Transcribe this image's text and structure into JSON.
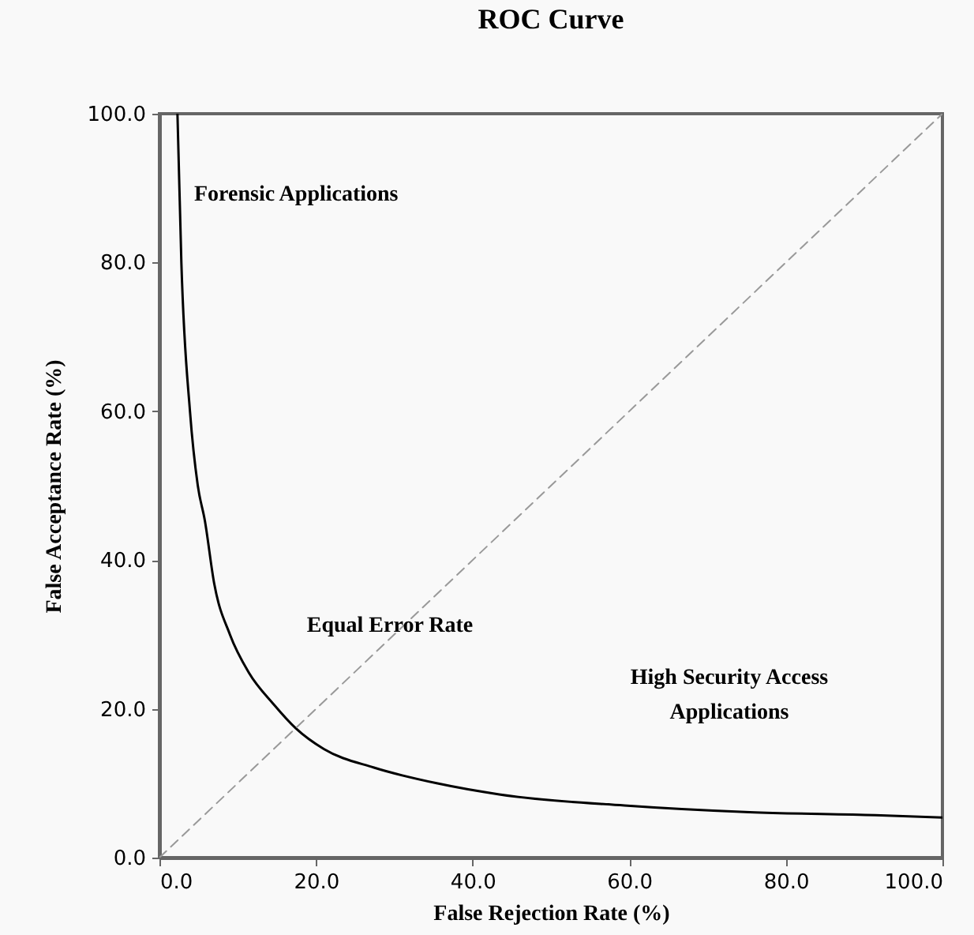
{
  "chart_data": {
    "type": "line",
    "title": "ROC Curve",
    "xlabel": "False Rejection Rate (%)",
    "ylabel": "False Acceptance Rate (%)",
    "xlim": [
      0,
      100
    ],
    "ylim": [
      0,
      100
    ],
    "xticks": [
      {
        "value": 0,
        "label": "0.0"
      },
      {
        "value": 20,
        "label": "20.0"
      },
      {
        "value": 40,
        "label": "40.0"
      },
      {
        "value": 60,
        "label": "60.0"
      },
      {
        "value": 80,
        "label": "80.0"
      },
      {
        "value": 100,
        "label": "100.0"
      }
    ],
    "yticks": [
      {
        "value": 0,
        "label": "0.0"
      },
      {
        "value": 20,
        "label": "20.0"
      },
      {
        "value": 40,
        "label": "40.0"
      },
      {
        "value": 60,
        "label": "60.0"
      },
      {
        "value": 80,
        "label": "80.0"
      },
      {
        "value": 100,
        "label": "100.0"
      }
    ],
    "grid": false,
    "marker": "none",
    "series": [
      {
        "color": "#000000",
        "line_style": "solid",
        "x": [
          2.3,
          2.8,
          3.9,
          4.9,
          5.8,
          7.0,
          9.0,
          11.4,
          14.6,
          17.4,
          21,
          27.4,
          35.4,
          43.4,
          59.4,
          75.4,
          91.4,
          100
        ],
        "values": [
          100,
          80,
          60,
          50,
          45.3,
          36.8,
          30.0,
          24.9,
          20.6,
          17.4,
          14.6,
          12.1,
          10.0,
          8.5,
          7.0,
          6.1,
          5.7,
          5.4
        ]
      },
      {
        "color": "#999999",
        "line_style": "dashed",
        "x": [
          0,
          100
        ],
        "values": [
          0,
          100
        ]
      }
    ],
    "annotations": [
      "Forensic Applications",
      "Equal Error Rate",
      "High Security Access Applications"
    ]
  }
}
